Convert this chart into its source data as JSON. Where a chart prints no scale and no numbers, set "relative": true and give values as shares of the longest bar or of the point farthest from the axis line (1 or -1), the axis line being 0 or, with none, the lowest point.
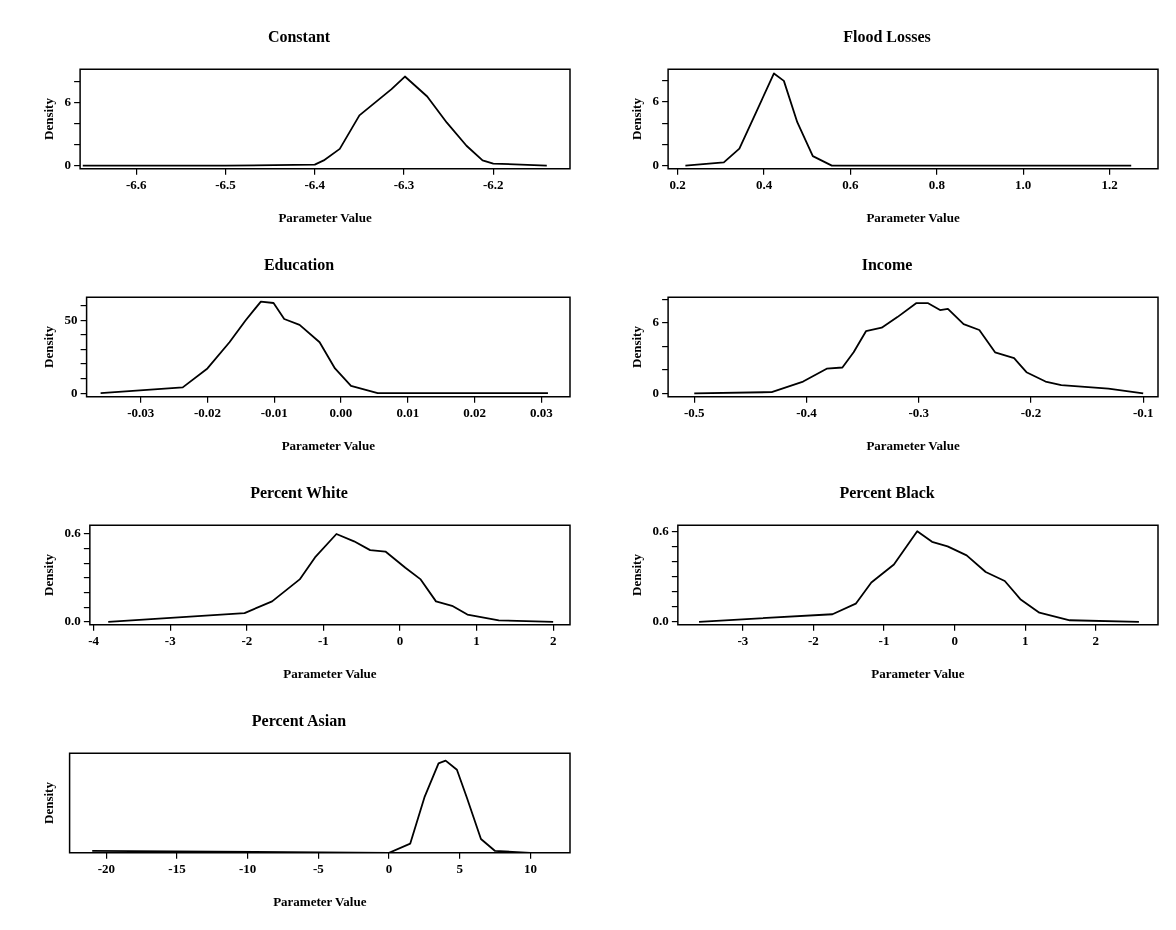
{
  "chart_data": [
    {
      "type": "line",
      "title": "Constant",
      "xlabel": "Parameter Value",
      "ylabel": "Density",
      "xlim": [
        -6.663,
        -6.114
      ],
      "xticks": [
        -6.6,
        -6.5,
        -6.4,
        -6.3,
        -6.2
      ],
      "ylim": [
        -0.3,
        9.2
      ],
      "yticks": [
        0,
        {
          "value": 2,
          "label": null
        },
        {
          "value": 4,
          "label": null
        },
        6,
        {
          "value": 8,
          "label": null
        }
      ],
      "series": [
        {
          "color": "#000000",
          "x": [
            -6.66,
            -6.5,
            -6.4,
            -6.39,
            -6.372,
            -6.35,
            -6.314,
            -6.299,
            -6.274,
            -6.252,
            -6.23,
            -6.212,
            -6.2,
            -6.14
          ],
          "values": [
            0,
            0,
            0.1,
            0.5,
            1.6,
            4.8,
            7.3,
            8.5,
            6.6,
            4.1,
            1.9,
            0.5,
            0.2,
            0
          ]
        }
      ]
    },
    {
      "type": "line",
      "title": "Flood Losses",
      "xlabel": "Parameter Value",
      "ylabel": "Density",
      "xlim": [
        0.178,
        1.312
      ],
      "xticks": [
        0.2,
        0.4,
        0.6,
        0.8,
        {
          "value": 1,
          "label": "1.0"
        },
        1.2
      ],
      "ylim": [
        -0.3,
        9.1
      ],
      "yticks": [
        0,
        {
          "value": 2,
          "label": null
        },
        {
          "value": 4,
          "label": null
        },
        6,
        {
          "value": 8,
          "label": null
        }
      ],
      "series": [
        {
          "color": "#000000",
          "x": [
            0.218,
            0.307,
            0.343,
            0.379,
            0.423,
            0.446,
            0.477,
            0.513,
            0.557,
            1.25
          ],
          "values": [
            0,
            0.3,
            1.6,
            4.8,
            8.7,
            8,
            4.1,
            0.9,
            0,
            0
          ]
        }
      ]
    },
    {
      "type": "line",
      "title": "Education",
      "xlabel": "Parameter Value",
      "ylabel": "Density",
      "xlim": [
        -0.0381,
        0.0343
      ],
      "xticks": [
        -0.03,
        -0.02,
        -0.01,
        {
          "value": 0,
          "label": "0.00"
        },
        0.01,
        0.02,
        0.03
      ],
      "ylim": [
        -2.5,
        66
      ],
      "yticks": [
        0,
        {
          "value": 10,
          "label": null
        },
        {
          "value": 20,
          "label": null
        },
        {
          "value": 30,
          "label": null
        },
        {
          "value": 40,
          "label": null
        },
        50,
        {
          "value": 60,
          "label": null
        }
      ],
      "series": [
        {
          "color": "#000000",
          "x": [
            -0.036,
            -0.0237,
            -0.02,
            -0.0167,
            -0.0143,
            -0.012,
            -0.0101,
            -0.0085,
            -0.0062,
            -0.0032,
            -0.0009,
            0.0015,
            0.0055,
            0.031
          ],
          "values": [
            0,
            4,
            17,
            35,
            50,
            63,
            62,
            51,
            47,
            35,
            17,
            5,
            0,
            0
          ]
        }
      ]
    },
    {
      "type": "line",
      "title": "Income",
      "xlabel": "Parameter Value",
      "ylabel": "Density",
      "xlim": [
        -0.5233,
        -0.0868
      ],
      "xticks": [
        -0.5,
        -0.4,
        -0.3,
        -0.2,
        -0.1
      ],
      "ylim": [
        -0.3,
        8.2
      ],
      "yticks": [
        0,
        {
          "value": 2,
          "label": null
        },
        {
          "value": 4,
          "label": null
        },
        6,
        {
          "value": 8,
          "label": null
        }
      ],
      "series": [
        {
          "color": "#000000",
          "x": [
            -0.5,
            -0.431,
            -0.403,
            -0.382,
            -0.368,
            -0.358,
            -0.347,
            -0.333,
            -0.319,
            -0.302,
            -0.292,
            -0.281,
            -0.274,
            -0.26,
            -0.246,
            -0.232,
            -0.215,
            -0.204,
            -0.187,
            -0.173,
            -0.131,
            -0.1
          ],
          "values": [
            0,
            0.1,
            1,
            2.1,
            2.2,
            3.5,
            5.3,
            5.6,
            6.5,
            7.7,
            7.7,
            7.1,
            7.2,
            5.9,
            5.4,
            3.5,
            3,
            1.8,
            1,
            0.7,
            0.4,
            0
          ]
        }
      ]
    },
    {
      "type": "line",
      "title": "Percent White",
      "xlabel": "Parameter Value",
      "ylabel": "Density",
      "xlim": [
        -4.05,
        2.22
      ],
      "xticks": [
        -4,
        -3,
        -2,
        -1,
        0,
        1,
        2
      ],
      "ylim": [
        -0.02,
        0.66
      ],
      "yticks": [
        {
          "value": 0,
          "label": "0.0"
        },
        {
          "value": 0.1,
          "label": null
        },
        {
          "value": 0.2,
          "label": null
        },
        {
          "value": 0.3,
          "label": null
        },
        {
          "value": 0.4,
          "label": null
        },
        {
          "value": 0.5,
          "label": null
        },
        {
          "value": 0.6,
          "label": "0.6"
        }
      ],
      "series": [
        {
          "color": "#000000",
          "x": [
            -3.81,
            -2.03,
            -1.67,
            -1.31,
            -1.11,
            -0.83,
            -0.6,
            -0.39,
            -0.19,
            0.07,
            0.27,
            0.47,
            0.68,
            0.88,
            1.29,
            2
          ],
          "values": [
            0,
            0.06,
            0.14,
            0.29,
            0.44,
            0.6,
            0.55,
            0.49,
            0.48,
            0.37,
            0.29,
            0.14,
            0.11,
            0.05,
            0.01,
            0
          ]
        }
      ]
    },
    {
      "type": "line",
      "title": "Percent Black",
      "xlabel": "Parameter Value",
      "ylabel": "Density",
      "xlim": [
        -3.92,
        2.88
      ],
      "xticks": [
        -3,
        -2,
        -1,
        0,
        1,
        2
      ],
      "ylim": [
        -0.02,
        0.64
      ],
      "yticks": [
        {
          "value": 0,
          "label": "0.0"
        },
        {
          "value": 0.1,
          "label": null
        },
        {
          "value": 0.2,
          "label": null
        },
        {
          "value": 0.3,
          "label": null
        },
        {
          "value": 0.4,
          "label": null
        },
        {
          "value": 0.5,
          "label": null
        },
        {
          "value": 0.6,
          "label": "0.6"
        }
      ],
      "series": [
        {
          "color": "#000000",
          "x": [
            -3.62,
            -1.73,
            -1.4,
            -1.18,
            -0.86,
            -0.53,
            -0.32,
            -0.1,
            0.17,
            0.44,
            0.71,
            0.93,
            1.2,
            1.63,
            2.61
          ],
          "values": [
            0,
            0.05,
            0.12,
            0.26,
            0.38,
            0.6,
            0.53,
            0.5,
            0.44,
            0.33,
            0.27,
            0.15,
            0.06,
            0.01,
            0
          ]
        }
      ]
    },
    {
      "type": "line",
      "title": "Percent Asian",
      "xlabel": "Parameter Value",
      "ylabel": "Density",
      "relative": true,
      "xlim": [
        -22.6,
        12.8
      ],
      "xticks": [
        -20,
        -15,
        -10,
        -5,
        0,
        5,
        10
      ],
      "series": [
        {
          "color": "#000000",
          "x": [
            -21,
            0,
            1.5,
            2.5,
            3.5,
            4,
            4.8,
            5.5,
            6.5,
            7.5,
            10
          ],
          "values": [
            0.02,
            0,
            0.1,
            0.6,
            0.97,
            1,
            0.9,
            0.6,
            0.15,
            0.02,
            0
          ]
        }
      ]
    }
  ]
}
